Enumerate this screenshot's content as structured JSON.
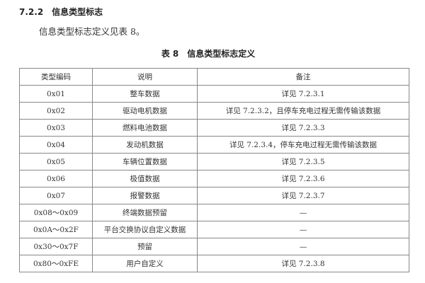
{
  "section": {
    "number": "7.2.2",
    "title": "信息类型标志"
  },
  "paragraph": "信息类型标志定义见表 8。",
  "caption": {
    "label": "表 8",
    "title": "信息类型标志定义"
  },
  "table": {
    "headers": [
      "类型编码",
      "说明",
      "备注"
    ],
    "rows": [
      [
        "0x01",
        "整车数据",
        "详见 7.2.3.1"
      ],
      [
        "0x02",
        "驱动电机数据",
        "详见 7.2.3.2，且停车充电过程无需传输该数据"
      ],
      [
        "0x03",
        "燃料电池数据",
        "详见 7.2.3.3"
      ],
      [
        "0x04",
        "发动机数据",
        "详见 7.2.3.4，停车充电过程无需传输该数据"
      ],
      [
        "0x05",
        "车辆位置数据",
        "详见 7.2.3.5"
      ],
      [
        "0x06",
        "极值数据",
        "详见 7.2.3.6"
      ],
      [
        "0x07",
        "报警数据",
        "详见 7.2.3.7"
      ],
      [
        "0x08～0x09",
        "终端数据预留",
        "—"
      ],
      [
        "0x0A～0x2F",
        "平台交换协议自定义数据",
        "—"
      ],
      [
        "0x30～0x7F",
        "预留",
        "—"
      ],
      [
        "0x80～0xFE",
        "用户自定义",
        "详见 7.2.3.8"
      ]
    ]
  }
}
